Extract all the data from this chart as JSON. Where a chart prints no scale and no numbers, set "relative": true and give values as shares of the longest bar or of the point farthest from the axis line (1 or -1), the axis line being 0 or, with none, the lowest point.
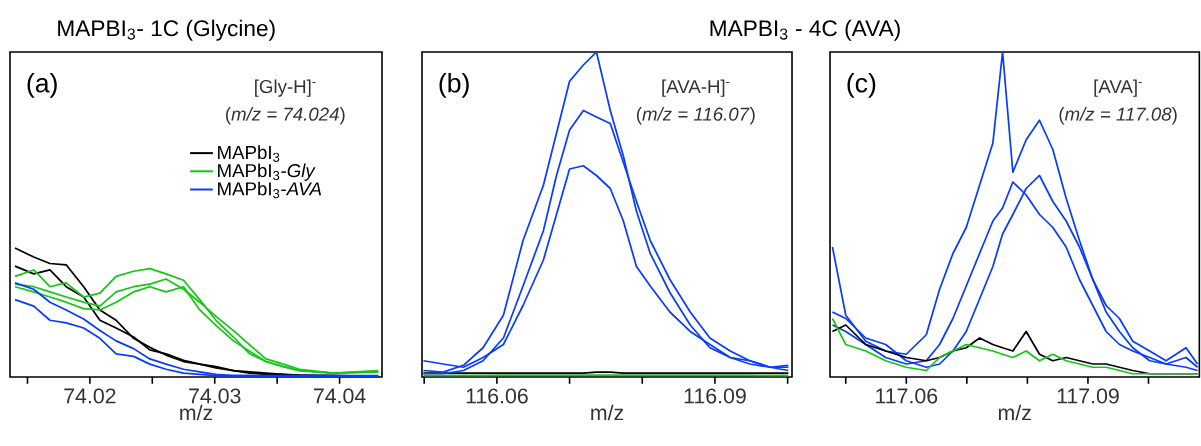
{
  "chart_data": [
    {
      "type": "line",
      "title": "MAPBI$_{3}$- 1C (Glycine)",
      "xlabel": "m/z",
      "relative": true,
      "legend": "top right",
      "annotations": [
        "(a)",
        "[Gly-H]$^{-}$",
        "(*m/z = 74.024*)"
      ],
      "xlim": [
        74.0136,
        74.0434
      ],
      "xticks": [
        {
          "value": 74.015,
          "label": null
        },
        74.02,
        {
          "value": 74.025,
          "label": null
        },
        74.03,
        {
          "value": 74.035,
          "label": null
        },
        74.04
      ],
      "x": [
        74.014,
        74.0155,
        74.0168,
        74.0181,
        74.0195,
        74.0208,
        74.0221,
        74.0235,
        74.0248,
        74.0261,
        74.0275,
        74.0288,
        74.0301,
        74.0315,
        74.0328,
        74.0341,
        74.0355,
        74.0368,
        74.0395,
        74.0431
      ],
      "series": [
        {
          "name": "MAPbI$_{3}$",
          "color": "#000000",
          "values": [
            1.0,
            0.93,
            0.88,
            0.87,
            0.7,
            0.52,
            0.44,
            0.3,
            0.23,
            0.17,
            0.12,
            0.1,
            0.08,
            0.05,
            0.04,
            0.03,
            0.02,
            0.015,
            0.01,
            0.005
          ]
        },
        {
          "color": "#000000",
          "values": [
            0.86,
            0.8,
            0.83,
            0.7,
            0.62,
            0.44,
            0.38,
            0.31,
            0.21,
            0.18,
            0.13,
            0.1,
            0.07,
            0.05,
            0.03,
            0.02,
            0.02,
            0.01,
            0.01,
            0.005
          ]
        },
        {
          "name": "MAPbI$_{3}$-*Gly*",
          "color": "#14c814",
          "values": [
            0.78,
            0.83,
            0.7,
            0.73,
            0.62,
            0.65,
            0.78,
            0.82,
            0.84,
            0.8,
            0.75,
            0.6,
            0.44,
            0.31,
            0.18,
            0.12,
            0.08,
            0.05,
            0.03,
            0.05
          ]
        },
        {
          "color": "#14c814",
          "values": [
            0.72,
            0.7,
            0.66,
            0.62,
            0.58,
            0.55,
            0.66,
            0.7,
            0.72,
            0.76,
            0.68,
            0.58,
            0.47,
            0.36,
            0.25,
            0.14,
            0.1,
            0.06,
            0.03,
            0.04
          ]
        },
        {
          "color": "#14c814",
          "values": [
            0.7,
            0.66,
            0.62,
            0.58,
            0.53,
            0.52,
            0.58,
            0.66,
            0.7,
            0.66,
            0.7,
            0.52,
            0.4,
            0.28,
            0.2,
            0.12,
            0.08,
            0.05,
            0.03,
            0.04
          ]
        },
        {
          "name": "MAPbI$_{3}$-*AVA*",
          "color": "#0a3cff",
          "values": [
            0.73,
            0.68,
            0.58,
            0.52,
            0.45,
            0.36,
            0.28,
            0.22,
            0.14,
            0.1,
            0.06,
            0.04,
            0.02,
            0.01,
            0.01,
            0.01,
            0.01,
            0.01,
            0.01,
            0.01
          ]
        },
        {
          "color": "#0a3cff",
          "values": [
            0.6,
            0.55,
            0.44,
            0.42,
            0.38,
            0.3,
            0.18,
            0.16,
            0.1,
            0.06,
            0.03,
            0.02,
            0.01,
            0.01,
            0.01,
            0.005,
            0.005,
            0.005,
            0.005,
            0.005
          ]
        }
      ]
    },
    {
      "type": "line",
      "title": "MAPBI$_{3}$ - 4C (AVA)",
      "xlabel": "m/z",
      "relative": true,
      "annotations": [
        "(b)",
        "[AVA-H]$^{-}$",
        "(*m/z = 116.07*)"
      ],
      "xlim": [
        116.0497,
        116.1006
      ],
      "xticks": [
        {
          "value": 116.05,
          "label": null
        },
        116.06,
        {
          "value": 116.07,
          "label": null
        },
        {
          "value": 116.08,
          "label": null
        },
        116.09,
        {
          "value": 116.1,
          "label": null
        }
      ],
      "x": [
        116.0499,
        116.0526,
        116.0554,
        116.0581,
        116.0609,
        116.0636,
        116.0664,
        116.0682,
        116.07,
        116.0719,
        116.0737,
        116.0756,
        116.0774,
        116.0792,
        116.0811,
        116.0838,
        116.0866,
        116.0893,
        116.0921,
        116.0948,
        116.0976,
        116.1001
      ],
      "series": [
        {
          "color": "#000000",
          "values": [
            0.012,
            0.012,
            0.012,
            0.012,
            0.012,
            0.012,
            0.012,
            0.012,
            0.012,
            0.012,
            0.015,
            0.015,
            0.012,
            0.012,
            0.012,
            0.012,
            0.012,
            0.012,
            0.012,
            0.012,
            0.012,
            0.012
          ]
        },
        {
          "color": "#14c814",
          "values": [
            0.005,
            0.005,
            0.005,
            0.005,
            0.006,
            0.006,
            0.006,
            0.006,
            0.006,
            0.006,
            0.006,
            0.006,
            0.006,
            0.006,
            0.006,
            0.006,
            0.006,
            0.006,
            0.006,
            0.006,
            0.005,
            0.005
          ]
        },
        {
          "color": "#0a3cff",
          "values": [
            0.02,
            0.015,
            0.036,
            0.09,
            0.19,
            0.42,
            0.59,
            0.75,
            0.91,
            0.96,
            1.0,
            0.82,
            0.68,
            0.51,
            0.38,
            0.26,
            0.16,
            0.09,
            0.06,
            0.05,
            0.03,
            0.036
          ]
        },
        {
          "color": "#0a3cff",
          "values": [
            0.01,
            0.01,
            0.02,
            0.05,
            0.12,
            0.28,
            0.45,
            0.62,
            0.76,
            0.82,
            0.8,
            0.78,
            0.66,
            0.54,
            0.42,
            0.3,
            0.2,
            0.12,
            0.08,
            0.05,
            0.03,
            0.03
          ]
        },
        {
          "color": "#0a3cff",
          "values": [
            0.05,
            0.04,
            0.03,
            0.06,
            0.1,
            0.22,
            0.36,
            0.5,
            0.64,
            0.65,
            0.62,
            0.58,
            0.48,
            0.34,
            0.28,
            0.2,
            0.14,
            0.1,
            0.06,
            0.04,
            0.03,
            0.02
          ]
        }
      ]
    },
    {
      "type": "line",
      "xlabel": "m/z",
      "relative": true,
      "annotations": [
        "(c)",
        "[AVA]$^{-}$",
        "(*m/z = 117.08*)"
      ],
      "xlim": [
        117.0474,
        117.1084
      ],
      "xticks": [
        {
          "value": 117.05,
          "label": null
        },
        117.06,
        {
          "value": 117.07,
          "label": null
        },
        {
          "value": 117.08,
          "label": null
        },
        117.09,
        {
          "value": 117.1,
          "label": null
        }
      ],
      "x": [
        117.0478,
        117.05,
        117.0533,
        117.0566,
        117.06,
        117.0633,
        117.0655,
        117.0677,
        117.0699,
        117.0721,
        117.0743,
        117.0759,
        117.0776,
        117.0798,
        117.082,
        117.0842,
        117.0864,
        117.0886,
        117.0908,
        117.093,
        117.0952,
        117.0974,
        117.1002,
        117.1029,
        117.1062,
        117.1081
      ],
      "series": [
        {
          "color": "#0a3cff",
          "values": [
            0.4,
            0.19,
            0.11,
            0.08,
            0.07,
            0.13,
            0.27,
            0.38,
            0.46,
            0.59,
            0.72,
            1.0,
            0.63,
            0.73,
            0.79,
            0.7,
            0.55,
            0.42,
            0.3,
            0.22,
            0.18,
            0.11,
            0.08,
            0.05,
            0.09,
            0.04
          ]
        },
        {
          "color": "#0a3cff",
          "values": [
            0.16,
            0.14,
            0.1,
            0.06,
            0.04,
            0.05,
            0.1,
            0.18,
            0.28,
            0.38,
            0.48,
            0.52,
            0.6,
            0.56,
            0.5,
            0.46,
            0.4,
            0.3,
            0.22,
            0.14,
            0.1,
            0.08,
            0.06,
            0.04,
            0.06,
            0.03
          ]
        },
        {
          "color": "#0a3cff",
          "values": [
            0.2,
            0.18,
            0.12,
            0.1,
            0.05,
            0.03,
            0.04,
            0.08,
            0.14,
            0.24,
            0.34,
            0.44,
            0.5,
            0.58,
            0.62,
            0.54,
            0.48,
            0.4,
            0.3,
            0.2,
            0.14,
            0.09,
            0.05,
            0.04,
            0.03,
            0.02
          ]
        },
        {
          "color": "#000000",
          "values": [
            0.14,
            0.16,
            0.1,
            0.08,
            0.06,
            0.05,
            0.06,
            0.08,
            0.09,
            0.12,
            0.1,
            0.09,
            0.08,
            0.14,
            0.07,
            0.05,
            0.06,
            0.05,
            0.04,
            0.04,
            0.03,
            0.02,
            0.01,
            0.01,
            0.01,
            0.01
          ]
        },
        {
          "color": "#14c814",
          "values": [
            0.18,
            0.1,
            0.08,
            0.05,
            0.03,
            0.02,
            0.06,
            0.08,
            0.1,
            0.09,
            0.08,
            0.07,
            0.06,
            0.08,
            0.05,
            0.07,
            0.05,
            0.04,
            0.03,
            0.03,
            0.02,
            0.01,
            0.01,
            0.01,
            0.01,
            0.01
          ]
        }
      ]
    }
  ]
}
